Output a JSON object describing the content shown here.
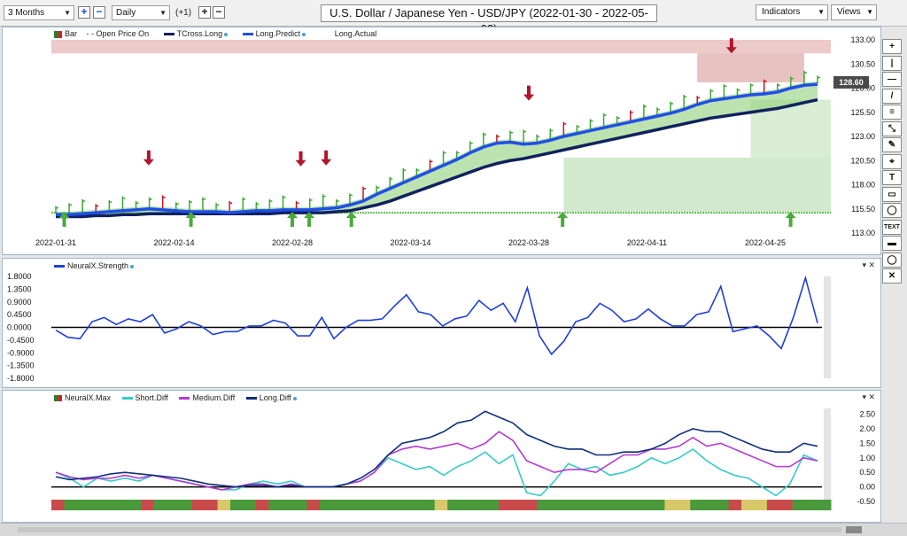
{
  "toolbar": {
    "range_value": "3 Months",
    "interval_value": "Daily",
    "offset_label": "(+1)",
    "title": "U.S. Dollar / Japanese Yen - USD/JPY (2022-01-30 - 2022-05-02)",
    "indicators_label": "Indicators",
    "views_label": "Views"
  },
  "sidebar": {
    "tools": [
      "+",
      "|",
      "—",
      "/",
      "≡",
      "⤡",
      "✎",
      "⌖",
      "T",
      "▭",
      "◯",
      "TEXT",
      "▬",
      "◯",
      "✕"
    ]
  },
  "chart_data": [
    {
      "type": "line",
      "title": "U.S. Dollar / Japanese Yen - USD/JPY (2022-01-30 - 2022-05-02)",
      "legend": [
        "Bar",
        "Open Price On",
        "TCross.Long",
        "Long.Predict",
        "Long.Actual"
      ],
      "x_ticks": [
        "2022-01-31",
        "2022-02-14",
        "2022-02-28",
        "2022-03-14",
        "2022-03-28",
        "2022-04-11",
        "2022-04-25"
      ],
      "y_ticks": [
        "133.00",
        "130.50",
        "128.00",
        "125.50",
        "123.00",
        "120.50",
        "118.00",
        "115.50",
        "113.00"
      ],
      "ylim": [
        113.0,
        133.0
      ],
      "current_price": "128.60",
      "series": [
        {
          "name": "Long.Predict",
          "color": "#1f4fe8",
          "values": [
            114.9,
            114.9,
            115.0,
            115.1,
            115.2,
            115.3,
            115.4,
            115.5,
            115.4,
            115.3,
            115.2,
            115.2,
            115.2,
            115.1,
            115.2,
            115.3,
            115.3,
            115.4,
            115.4,
            115.4,
            115.5,
            115.6,
            115.9,
            116.3,
            117.0,
            117.6,
            118.2,
            118.8,
            119.4,
            120.0,
            120.6,
            121.3,
            121.9,
            122.3,
            122.4,
            122.2,
            122.3,
            122.6,
            123.0,
            123.3,
            123.6,
            123.9,
            124.2,
            124.5,
            124.8,
            125.1,
            125.4,
            125.8,
            126.3,
            126.7,
            126.9,
            127.1,
            127.3,
            127.4,
            127.6,
            128.0,
            128.3,
            128.4
          ]
        },
        {
          "name": "TCross.Long",
          "color": "#10215e",
          "values": [
            114.7,
            114.7,
            114.7,
            114.8,
            114.8,
            114.9,
            114.9,
            115.0,
            115.0,
            115.0,
            115.0,
            115.0,
            115.0,
            115.0,
            115.0,
            115.0,
            115.0,
            115.1,
            115.1,
            115.1,
            115.1,
            115.2,
            115.3,
            115.6,
            115.9,
            116.3,
            116.8,
            117.3,
            117.8,
            118.3,
            118.8,
            119.3,
            119.8,
            120.2,
            120.5,
            120.7,
            121.0,
            121.3,
            121.6,
            121.9,
            122.2,
            122.5,
            122.8,
            123.1,
            123.4,
            123.7,
            124.0,
            124.3,
            124.6,
            124.9,
            125.1,
            125.3,
            125.5,
            125.7,
            125.9,
            126.2,
            126.5,
            126.8
          ]
        }
      ],
      "signals": {
        "up_arrows": [
          "2022-02-01",
          "2022-02-16",
          "2022-02-28",
          "2022-03-02",
          "2022-03-07",
          "2022-04-01",
          "2022-04-28"
        ],
        "down_arrows": [
          "2022-02-11",
          "2022-03-01",
          "2022-03-04",
          "2022-03-28",
          "2022-04-21"
        ]
      }
    },
    {
      "type": "line",
      "legend": [
        "NeuralX.Strength"
      ],
      "y_ticks": [
        "1.8000",
        "1.3500",
        "0.9000",
        "0.4500",
        "0.0000",
        "-0.4500",
        "-0.9000",
        "-1.3500",
        "-1.8000"
      ],
      "ylim": [
        -1.8,
        1.8
      ],
      "series": [
        {
          "name": "NeuralX.Strength",
          "color": "#1f3fd6",
          "values": [
            -0.1,
            -0.35,
            -0.4,
            0.2,
            0.35,
            0.1,
            0.3,
            0.2,
            0.45,
            -0.2,
            -0.05,
            0.2,
            0.05,
            -0.25,
            -0.15,
            -0.15,
            0.05,
            0.05,
            0.25,
            0.15,
            -0.3,
            -0.3,
            0.35,
            -0.4,
            0.0,
            0.25,
            0.25,
            0.3,
            0.75,
            1.15,
            0.55,
            0.45,
            0.05,
            0.3,
            0.4,
            0.95,
            0.6,
            0.85,
            0.2,
            1.4,
            -0.3,
            -0.95,
            -0.5,
            0.2,
            0.35,
            0.85,
            0.6,
            0.2,
            0.3,
            0.65,
            0.3,
            0.05,
            0.05,
            0.45,
            0.55,
            1.45,
            -0.15,
            -0.05,
            0.05,
            -0.3,
            -0.75,
            0.35,
            1.75,
            0.15
          ]
        }
      ]
    },
    {
      "type": "line",
      "legend": [
        "NeuralX.Max",
        "Short.Diff",
        "Medium.Diff",
        "Long.Diff"
      ],
      "y_ticks": [
        "2.50",
        "2.00",
        "1.50",
        "1.00",
        "0.50",
        "0.00",
        "-0.50"
      ],
      "ylim": [
        -0.5,
        2.7
      ],
      "series": [
        {
          "name": "Short.Diff",
          "color": "#38c9c9",
          "values": [
            0.5,
            0.3,
            0.0,
            0.3,
            0.2,
            0.3,
            0.2,
            0.4,
            0.3,
            0.2,
            0.1,
            0.0,
            -0.1,
            -0.1,
            0.1,
            0.2,
            0.1,
            0.2,
            0.0,
            0.0,
            0.0,
            0.1,
            0.2,
            0.5,
            1.0,
            0.8,
            0.6,
            0.7,
            0.4,
            0.7,
            0.9,
            1.2,
            0.8,
            1.1,
            -0.2,
            -0.3,
            0.2,
            0.8,
            0.6,
            0.7,
            0.4,
            0.5,
            0.7,
            1.0,
            0.8,
            1.0,
            1.3,
            0.9,
            0.6,
            0.4,
            0.3,
            0.0,
            -0.3,
            0.1,
            1.1,
            0.9
          ]
        },
        {
          "name": "Medium.Diff",
          "color": "#b33ad1",
          "values": [
            0.5,
            0.35,
            0.25,
            0.3,
            0.3,
            0.4,
            0.3,
            0.4,
            0.3,
            0.2,
            0.1,
            0.0,
            -0.1,
            0.0,
            0.1,
            0.1,
            0.0,
            0.1,
            0.0,
            0.0,
            0.0,
            0.1,
            0.2,
            0.5,
            1.1,
            1.3,
            1.4,
            1.3,
            1.4,
            1.5,
            1.3,
            1.5,
            1.9,
            1.6,
            0.9,
            0.7,
            0.5,
            0.6,
            0.6,
            0.5,
            0.8,
            1.1,
            1.1,
            1.3,
            1.3,
            1.4,
            1.7,
            1.4,
            1.5,
            1.3,
            1.1,
            0.9,
            0.7,
            0.7,
            1.0,
            0.9
          ]
        },
        {
          "name": "Long.Diff",
          "color": "#0f2e7a",
          "values": [
            0.35,
            0.25,
            0.3,
            0.35,
            0.45,
            0.5,
            0.45,
            0.4,
            0.35,
            0.3,
            0.2,
            0.1,
            0.05,
            0.0,
            0.05,
            0.05,
            0.0,
            0.05,
            0.0,
            0.0,
            0.0,
            0.1,
            0.3,
            0.6,
            1.1,
            1.5,
            1.6,
            1.7,
            1.9,
            2.2,
            2.3,
            2.6,
            2.4,
            2.2,
            1.8,
            1.6,
            1.4,
            1.3,
            1.3,
            1.1,
            1.1,
            1.2,
            1.2,
            1.3,
            1.5,
            1.8,
            2.0,
            1.9,
            1.9,
            1.7,
            1.5,
            1.3,
            1.2,
            1.2,
            1.5,
            1.4
          ]
        }
      ]
    }
  ]
}
